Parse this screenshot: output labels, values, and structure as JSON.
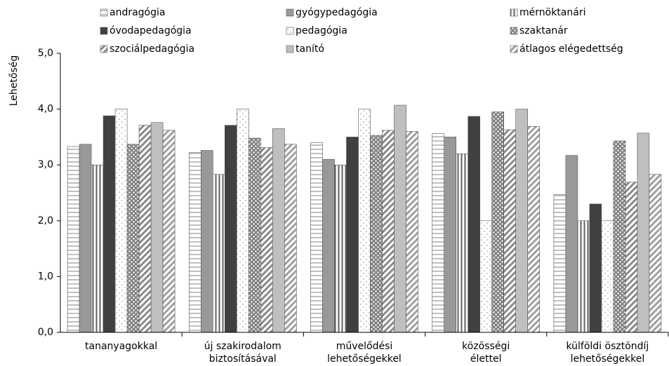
{
  "chart_data": {
    "type": "bar",
    "y_label": "Lehetőség",
    "categories": [
      "tananyagokkal",
      "új szakirodalom biztosításával",
      "művelődési lehetőségekkel",
      "közösségi élettel",
      "külföldi ösztöndíj lehetőségekkel"
    ],
    "series": [
      {
        "name": "andragógia",
        "color": "#808080",
        "pattern": "horizontal",
        "values": [
          3.33,
          3.22,
          3.4,
          3.56,
          2.47
        ]
      },
      {
        "name": "gyógypedagógia",
        "color": "#999999",
        "pattern": "solid",
        "values": [
          3.37,
          3.26,
          3.1,
          3.5,
          3.17
        ]
      },
      {
        "name": "mérnöktanári",
        "color": "#606060",
        "pattern": "vertical",
        "values": [
          3.0,
          2.83,
          3.0,
          3.2,
          2.0
        ]
      },
      {
        "name": "óvodapedagógia",
        "color": "#404040",
        "pattern": "solid",
        "values": [
          3.88,
          3.71,
          3.5,
          3.87,
          2.3
        ]
      },
      {
        "name": "pedagógia",
        "color": "#909090",
        "pattern": "sparse-dots",
        "values": [
          4.0,
          4.0,
          4.0,
          2.0,
          2.0
        ]
      },
      {
        "name": "szaktanár",
        "color": "#808080",
        "pattern": "dots",
        "values": [
          3.37,
          3.48,
          3.53,
          3.95,
          3.43
        ]
      },
      {
        "name": "szociálpedagógia",
        "color": "#8a8a8a",
        "pattern": "diagonal",
        "values": [
          3.71,
          3.31,
          3.62,
          3.63,
          2.69
        ]
      },
      {
        "name": "tanító",
        "color": "#bfbfbf",
        "pattern": "solid",
        "values": [
          3.76,
          3.65,
          4.07,
          4.0,
          3.57
        ]
      },
      {
        "name": "átlagos elégedettség",
        "color": "#a0a0a0",
        "pattern": "diagonal",
        "values": [
          3.62,
          3.37,
          3.6,
          3.69,
          2.83
        ]
      }
    ],
    "ylim": [
      0,
      5
    ],
    "yticks": [
      {
        "value": 0,
        "label": "0,0"
      },
      {
        "value": 1,
        "label": "1,0"
      },
      {
        "value": 2,
        "label": "2,0"
      },
      {
        "value": 3,
        "label": "3,0"
      },
      {
        "value": 4,
        "label": "4,0"
      },
      {
        "value": 5,
        "label": "5,0"
      }
    ],
    "legend": "top"
  }
}
